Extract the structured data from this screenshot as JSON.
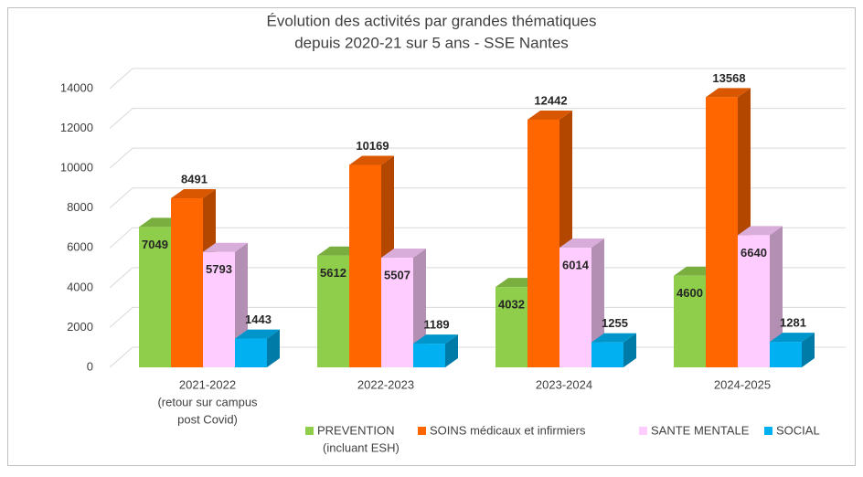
{
  "chart_data": {
    "type": "bar3d",
    "title": [
      "Évolution des activités par grandes thématiques",
      "depuis 2020-21 sur 5 ans - SSE Nantes"
    ],
    "categories": [
      [
        "2021-2022",
        "(retour sur campus",
        "post Covid)"
      ],
      [
        "2022-2023"
      ],
      [
        "2023-2024"
      ],
      [
        "2024-2025"
      ]
    ],
    "series": [
      {
        "name": [
          "PREVENTION",
          "(incluant ESH)"
        ],
        "color": "#8fce4a",
        "values": [
          7049,
          5612,
          4032,
          4600
        ]
      },
      {
        "name": [
          "SOINS médicaux et infirmiers"
        ],
        "color": "#ff6600",
        "values": [
          8491,
          10169,
          12442,
          13568
        ]
      },
      {
        "name": [
          "SANTE MENTALE"
        ],
        "color": "#ffccff",
        "values": [
          5793,
          5507,
          6014,
          6640
        ]
      },
      {
        "name": [
          "SOCIAL"
        ],
        "color": "#00b0f0",
        "values": [
          1443,
          1189,
          1255,
          1281
        ]
      }
    ],
    "ylim": [
      0,
      14000
    ],
    "yticks": [
      0,
      2000,
      4000,
      6000,
      8000,
      10000,
      12000,
      14000
    ],
    "grid": true
  }
}
